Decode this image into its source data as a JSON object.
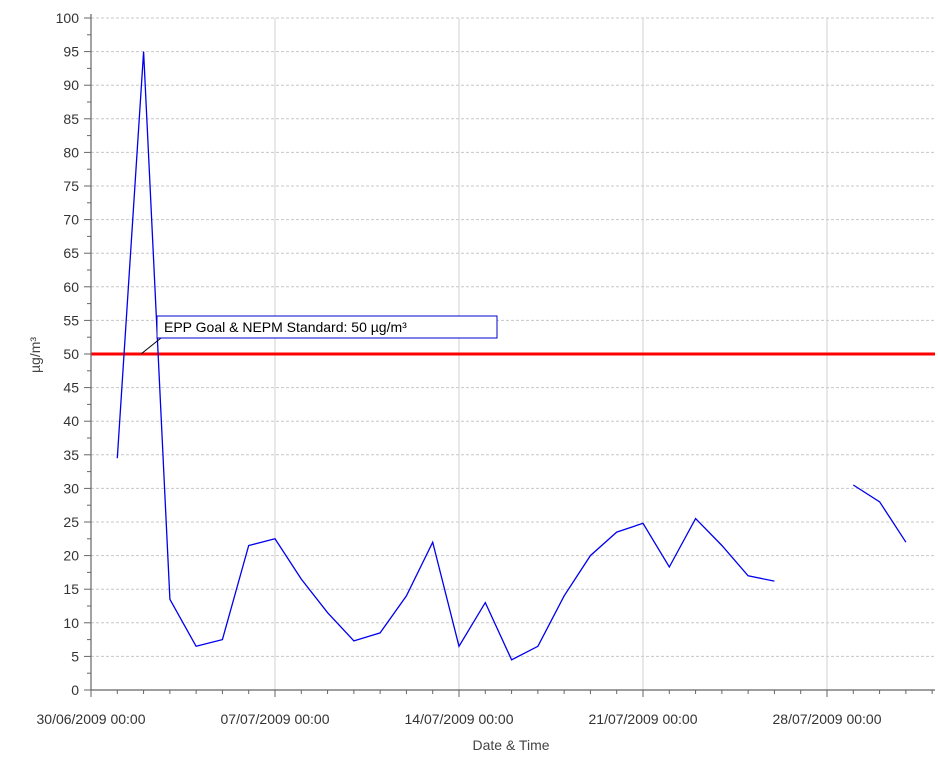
{
  "chart_data": {
    "type": "line",
    "xlabel": "Date & Time",
    "ylabel": "µg/m³",
    "xlim": [
      "2009-06-30 00:00",
      "2009-08-01 12:00"
    ],
    "ylim": [
      0,
      100
    ],
    "ytick_step": 5,
    "x_tick_labels": [
      "30/06/2009 00:00",
      "07/07/2009 00:00",
      "14/07/2009 00:00",
      "21/07/2009 00:00",
      "28/07/2009 00:00"
    ],
    "x_tick_dates": [
      "2009-06-30",
      "2009-07-07",
      "2009-07-14",
      "2009-07-21",
      "2009-07-28"
    ],
    "grid": true,
    "series": [
      {
        "color": "#0000ee",
        "segments": [
          [
            [
              "2009-07-01",
              34.5
            ],
            [
              "2009-07-02",
              95
            ],
            [
              "2009-07-03",
              13.5
            ],
            [
              "2009-07-04",
              6.5
            ],
            [
              "2009-07-05",
              7.5
            ],
            [
              "2009-07-06",
              21.5
            ],
            [
              "2009-07-07",
              22.5
            ],
            [
              "2009-07-08",
              16.5
            ],
            [
              "2009-07-09",
              11.5
            ],
            [
              "2009-07-10",
              7.3
            ],
            [
              "2009-07-11",
              8.5
            ],
            [
              "2009-07-12",
              14
            ],
            [
              "2009-07-13",
              22
            ],
            [
              "2009-07-14",
              6.5
            ],
            [
              "2009-07-15",
              13
            ],
            [
              "2009-07-16",
              4.5
            ],
            [
              "2009-07-17",
              6.5
            ],
            [
              "2009-07-18",
              14
            ],
            [
              "2009-07-19",
              20
            ],
            [
              "2009-07-20",
              23.5
            ],
            [
              "2009-07-21",
              24.8
            ],
            [
              "2009-07-22",
              18.3
            ],
            [
              "2009-07-23",
              25.5
            ],
            [
              "2009-07-24",
              21.5
            ],
            [
              "2009-07-25",
              17
            ],
            [
              "2009-07-26",
              16.2
            ]
          ],
          [
            [
              "2009-07-29",
              30.5
            ],
            [
              "2009-07-30",
              28
            ],
            [
              "2009-07-31",
              22
            ]
          ]
        ]
      }
    ],
    "reference_line": {
      "value": 50,
      "color": "#ff0000",
      "label": "EPP Goal & NEPM Standard: 50 µg/m³"
    }
  }
}
